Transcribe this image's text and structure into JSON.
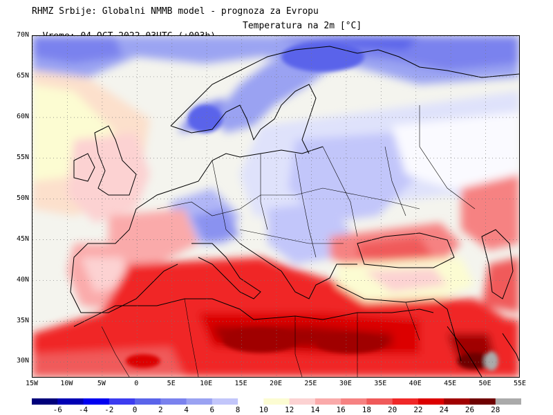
{
  "header": {
    "line1": "RHMZ Srbije: Globalni NMMB model - prognoza za Evropu",
    "line2": "Vreme: 04 OCT 2022 03UTC (+003h)",
    "parameter": "Temperatura na 2m [°C]"
  },
  "map": {
    "projection": "lat-lon",
    "lon_range": [
      -15,
      55
    ],
    "lat_range": [
      28,
      70
    ],
    "lat_labels": [
      "70N",
      "65N",
      "60N",
      "55N",
      "50N",
      "45N",
      "40N",
      "35N",
      "30N"
    ],
    "lat_values": [
      70,
      65,
      60,
      55,
      50,
      45,
      40,
      35,
      30
    ],
    "lon_labels": [
      "15W",
      "10W",
      "5W",
      "0",
      "5E",
      "10E",
      "15E",
      "20E",
      "25E",
      "30E",
      "35E",
      "40E",
      "45E",
      "50E",
      "55E"
    ],
    "lon_values": [
      -15,
      -10,
      -5,
      0,
      5,
      10,
      15,
      20,
      25,
      30,
      35,
      40,
      45,
      50,
      55
    ],
    "grid": "dotted"
  },
  "colorbar": {
    "labels": [
      "-6",
      "-4",
      "-2",
      "0",
      "2",
      "4",
      "6",
      "8",
      "10",
      "12",
      "14",
      "16",
      "18",
      "20",
      "22",
      "24",
      "26",
      "28"
    ],
    "colors": [
      "#00007a",
      "#0000b4",
      "#0000f0",
      "#3c3cf0",
      "#5a64ea",
      "#7a82ee",
      "#9aa2f2",
      "#c2c6fa",
      "#ffffff",
      "#fcfcd2",
      "#fcd2d2",
      "#faaaaa",
      "#f68282",
      "#f05a5a",
      "#f02828",
      "#dc0000",
      "#a00000",
      "#6e0000",
      "#aaaaaa"
    ]
  }
}
